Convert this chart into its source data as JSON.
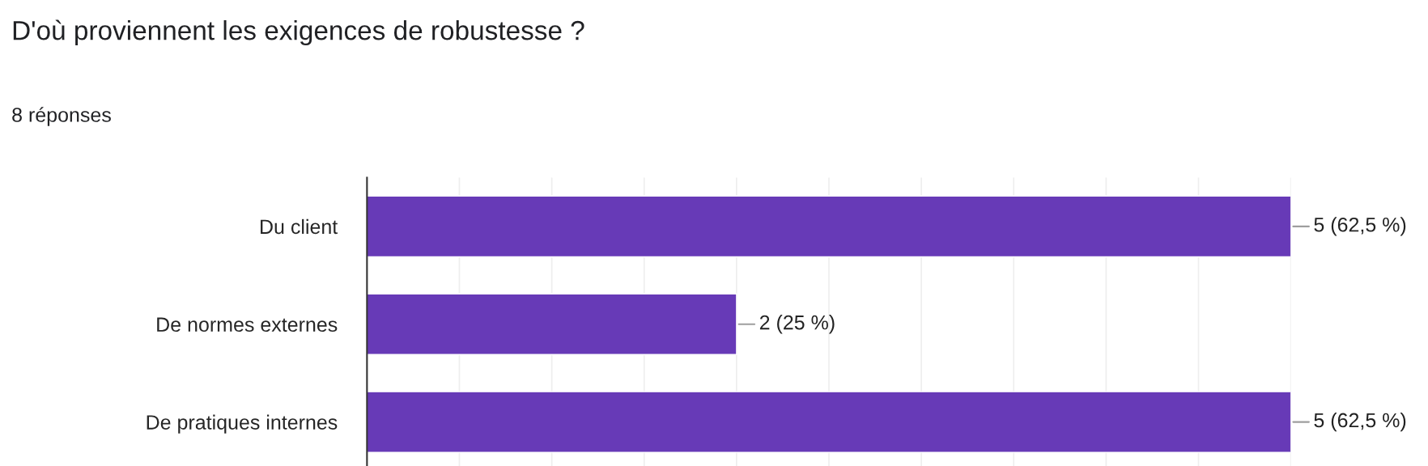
{
  "chart_data": {
    "type": "bar",
    "orientation": "horizontal",
    "title": "D'où proviennent les exigences de robustesse ?",
    "subtitle": "8 réponses",
    "categories": [
      "Du client",
      "De normes externes",
      "De pratiques internes"
    ],
    "series": [
      {
        "color": "#673ab7",
        "values": [
          5,
          2,
          5
        ],
        "value_labels": [
          "5 (62,5 %)",
          "2 (25 %)",
          "5 (62,5 %)"
        ]
      }
    ],
    "xlim": [
      0,
      5
    ],
    "xticks": [
      {
        "value": 0,
        "label": null
      },
      {
        "value": 0.5,
        "label": null
      },
      {
        "value": 1,
        "label": null
      },
      {
        "value": 1.5,
        "label": null
      },
      {
        "value": 2,
        "label": null
      },
      {
        "value": 2.5,
        "label": null
      },
      {
        "value": 3,
        "label": null
      },
      {
        "value": 3.5,
        "label": null
      },
      {
        "value": 4,
        "label": null
      },
      {
        "value": 4.5,
        "label": null
      },
      {
        "value": 5,
        "label": null
      }
    ],
    "grid": "x",
    "tick_labels": "y"
  }
}
